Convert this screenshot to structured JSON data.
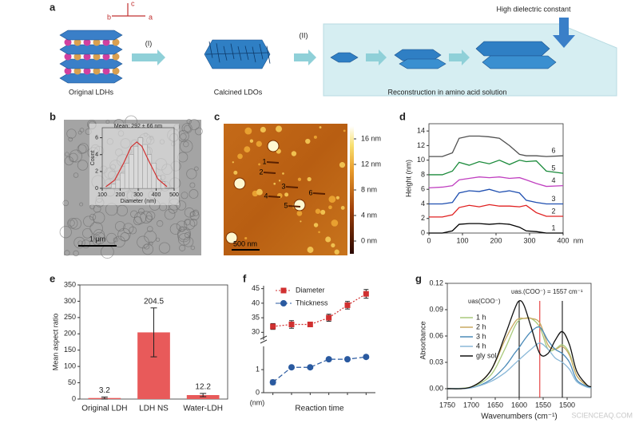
{
  "panel_labels": [
    "a",
    "b",
    "c",
    "d",
    "e",
    "f",
    "g"
  ],
  "diagram": {
    "axes": [
      "b",
      "c",
      "a"
    ],
    "steps": [
      "(I)",
      "(II)"
    ],
    "captions": [
      "Original LDHs",
      "Calcined LDOs",
      "Reconstruction in amino acid solution"
    ],
    "callout": "High dielectric constant"
  },
  "micrograph": {
    "scale_bar": "1 µm"
  },
  "afm": {
    "flake_labels": [
      "1",
      "2",
      "3",
      "4",
      "5",
      "6"
    ],
    "scale_bar": "500 nm",
    "colorbar_lim": [
      -2,
      18
    ],
    "colorbar_ticks": [
      {
        "value": 16,
        "label": "16 nm"
      },
      {
        "value": 12,
        "label": "12 nm"
      },
      {
        "value": 8,
        "label": "8 nm"
      },
      {
        "value": 4,
        "label": "4 nm"
      },
      {
        "value": 0,
        "label": "0 nm"
      }
    ]
  },
  "watermark": "SCIENCEAQ.COM",
  "chart_data": [
    {
      "type": "histogram",
      "annotation": "Mean: 292 ± 66 nm",
      "x_label": "Diameter (nm)",
      "y_label": "Count",
      "bins": [
        150,
        175,
        200,
        225,
        250,
        275,
        300,
        325,
        350,
        375,
        400,
        425,
        450
      ],
      "counts": [
        0.5,
        1,
        1.8,
        3,
        4,
        5,
        6,
        5.2,
        4,
        3,
        1.5,
        0.8
      ],
      "color": "#d9d9d9",
      "fit": {
        "color": "#d03030",
        "x": [
          120,
          170,
          220,
          260,
          292,
          320,
          360,
          410,
          460
        ],
        "values": [
          0.19,
          1.0,
          3.03,
          4.9,
          5.5,
          5.0,
          3.2,
          1.1,
          0.2
        ]
      },
      "xlim": [
        100,
        500
      ],
      "xticks": [
        100,
        200,
        300,
        400,
        500
      ],
      "ylim": [
        0,
        7
      ],
      "yticks": [
        0,
        2,
        4,
        6
      ]
    },
    {
      "type": "line",
      "x_label": "nm",
      "y_label": "Height (nm)",
      "x": [
        0,
        40,
        70,
        90,
        120,
        150,
        180,
        210,
        240,
        270,
        290,
        320,
        350,
        400
      ],
      "series": [
        {
          "name": "1",
          "color": "#000000",
          "values": [
            0,
            0,
            0.3,
            1.2,
            1.3,
            1.3,
            1.2,
            1.3,
            1.2,
            0.8,
            0.3,
            0.2,
            0,
            0
          ]
        },
        {
          "name": "2",
          "color": "#e02020",
          "values": [
            2.2,
            2.2,
            2.5,
            3.5,
            3.8,
            3.6,
            3.9,
            3.7,
            3.7,
            3.6,
            3.8,
            2.8,
            2.3,
            2.3
          ]
        },
        {
          "name": "3",
          "color": "#1f4fb0",
          "values": [
            4,
            4,
            4.2,
            5.5,
            5.8,
            5.7,
            6,
            5.6,
            5.8,
            5.5,
            4.5,
            4.2,
            4,
            4
          ]
        },
        {
          "name": "4",
          "color": "#c040c0",
          "values": [
            6.2,
            6.3,
            6.5,
            7.3,
            7.5,
            7.7,
            7.6,
            7.7,
            7.5,
            7.6,
            7.3,
            6.8,
            6.4,
            6.5
          ]
        },
        {
          "name": "5",
          "color": "#1a8a3a",
          "values": [
            8,
            8,
            8.5,
            9.7,
            9.3,
            9.8,
            9.5,
            10,
            9.4,
            10,
            9.8,
            9.9,
            8.5,
            8.2
          ]
        },
        {
          "name": "6",
          "color": "#505050",
          "values": [
            10.5,
            10.5,
            11,
            13,
            13.3,
            13.3,
            13.2,
            13,
            12,
            10.8,
            10.6,
            10.6,
            10.5,
            10.6
          ]
        }
      ],
      "xlim": [
        0,
        400
      ],
      "xticks": [
        0,
        100,
        200,
        300,
        400
      ],
      "ylim": [
        0,
        15
      ],
      "yticks": [
        0,
        2,
        4,
        6,
        8,
        10,
        12,
        14
      ]
    },
    {
      "type": "bar",
      "y_label": "Mean aspect ratio",
      "categories": [
        "Original LDH",
        "LDH NS",
        "Water-LDH"
      ],
      "values": [
        3.2,
        204.5,
        12.2
      ],
      "errors": [
        3,
        75,
        5
      ],
      "color": "#e85a5a",
      "ylim": [
        0,
        350
      ],
      "yticks": [
        0,
        50,
        100,
        150,
        200,
        250,
        300,
        350
      ]
    },
    {
      "type": "broken-line",
      "x_label": "Reaction time",
      "y_label": "(nm)",
      "categories": [
        null,
        null,
        null,
        null,
        null,
        null
      ],
      "series": [
        {
          "name": "Diameter",
          "color": "#d03030",
          "marker": "square",
          "axis": "upper",
          "values": [
            32,
            32.7,
            32.7,
            35,
            39.3,
            43.2
          ],
          "errors": [
            1,
            1.3,
            0.5,
            1.2,
            1.3,
            1.5
          ]
        },
        {
          "name": "Thickness",
          "color": "#2a5aa0",
          "marker": "circle",
          "axis": "lower",
          "values": [
            0.45,
            1.1,
            1.1,
            1.45,
            1.45,
            1.55
          ],
          "errors": [
            0.1,
            0.07,
            0.05,
            0.05,
            0.05,
            0.07
          ]
        }
      ],
      "ylim": [
        0,
        1.8
      ],
      "yticks": [
        0,
        1
      ],
      "ylim_upper": [
        29,
        46
      ],
      "yticks_upper": [
        30,
        35,
        40,
        45
      ]
    },
    {
      "type": "spectrum",
      "x_label": "Wavenumbers (cm⁻¹)",
      "y_label": "Absorbance",
      "annotations": [
        "υas(COO⁻)",
        "υas.(COO⁻) = 1557 cm⁻¹"
      ],
      "vlines": [
        1600,
        1557,
        1510
      ],
      "vline_colors": [
        "#000000",
        "#e02020",
        "#000000"
      ],
      "x": [
        1750,
        1700,
        1660,
        1630,
        1610,
        1600,
        1590,
        1575,
        1557,
        1540,
        1525,
        1510,
        1495,
        1480,
        1460,
        1450
      ],
      "series": [
        {
          "name": "1 h",
          "color": "#a8c97a",
          "values": [
            0,
            0.002,
            0.015,
            0.045,
            0.07,
            0.078,
            0.08,
            0.08,
            0.07,
            0.045,
            0.045,
            0.05,
            0.04,
            0.015,
            0.004,
            0.002
          ]
        },
        {
          "name": "2 h",
          "color": "#c8a860",
          "values": [
            0,
            0.002,
            0.02,
            0.055,
            0.075,
            0.08,
            0.08,
            0.08,
            0.075,
            0.05,
            0.045,
            0.048,
            0.038,
            0.015,
            0.004,
            0.002
          ]
        },
        {
          "name": "3 h",
          "color": "#4a8ab8",
          "values": [
            0,
            0.001,
            0.01,
            0.025,
            0.04,
            0.047,
            0.055,
            0.065,
            0.07,
            0.055,
            0.045,
            0.04,
            0.03,
            0.01,
            0.003,
            0.001
          ]
        },
        {
          "name": "4 h",
          "color": "#8ab8d8",
          "values": [
            0,
            0.001,
            0.008,
            0.018,
            0.028,
            0.033,
            0.038,
            0.045,
            0.052,
            0.045,
            0.035,
            0.03,
            0.022,
            0.008,
            0.002,
            0.001
          ]
        },
        {
          "name": "gly sol",
          "color": "#111111",
          "values": [
            0,
            0.002,
            0.02,
            0.06,
            0.09,
            0.1,
            0.095,
            0.07,
            0.04,
            0.04,
            0.055,
            0.065,
            0.05,
            0.02,
            0.005,
            0.002
          ]
        }
      ],
      "xlim": [
        1750,
        1450
      ],
      "xticks": [
        1750,
        1700,
        1650,
        1600,
        1550,
        1500
      ],
      "ylim": [
        -0.01,
        0.12
      ],
      "yticks": [
        {
          "value": 0,
          "label": "0.00"
        },
        {
          "value": 0.03,
          "label": "0.03"
        },
        {
          "value": 0.06,
          "label": "0.06"
        },
        {
          "value": 0.09,
          "label": "0.09"
        },
        {
          "value": 0.12,
          "label": "0.12"
        }
      ]
    }
  ]
}
